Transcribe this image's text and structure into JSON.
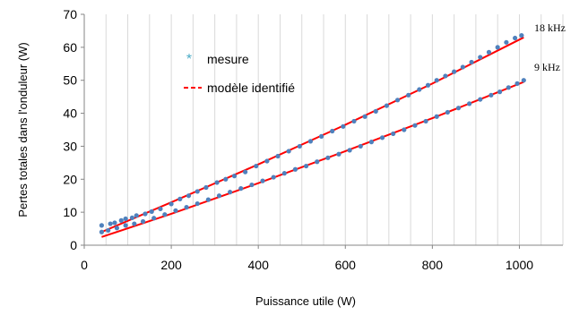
{
  "chart_data": {
    "type": "scatter",
    "xlabel": "Puissance utile (W)",
    "ylabel": "Pertes totales dans l'onduleur (W)",
    "xlim": [
      0,
      1100
    ],
    "ylim": [
      0,
      70
    ],
    "x_ticks": [
      "0",
      "200",
      "400",
      "600",
      "800",
      "1000"
    ],
    "y_ticks": [
      "0",
      "10",
      "20",
      "30",
      "40",
      "50",
      "60",
      "70"
    ],
    "grid": "vertical",
    "legend_position": "top-left",
    "legend": {
      "measure": "mesure",
      "model": "modèle identifié"
    },
    "annotations": [
      "18 kHz",
      "9 kHz"
    ],
    "colors": {
      "measure": "#4f81bd",
      "model": "#ff0000",
      "legend_marker": "#4bacc6",
      "grid": "#d9d9d9",
      "axis": "#868686"
    },
    "series": [
      {
        "name": "mesure",
        "kind": "scatter",
        "label": "18 kHz",
        "points": [
          [
            40,
            6.0
          ],
          [
            60,
            6.5
          ],
          [
            70,
            6.8
          ],
          [
            85,
            7.5
          ],
          [
            95,
            8.0
          ],
          [
            110,
            8.3
          ],
          [
            120,
            9.0
          ],
          [
            140,
            9.5
          ],
          [
            155,
            10.2
          ],
          [
            175,
            11.0
          ],
          [
            200,
            12.5
          ],
          [
            220,
            14.0
          ],
          [
            240,
            15.0
          ],
          [
            260,
            16.3
          ],
          [
            280,
            17.5
          ],
          [
            305,
            19.0
          ],
          [
            325,
            20.0
          ],
          [
            345,
            21.0
          ],
          [
            370,
            22.2
          ],
          [
            395,
            24.0
          ],
          [
            420,
            25.5
          ],
          [
            445,
            27.0
          ],
          [
            470,
            28.5
          ],
          [
            495,
            30.0
          ],
          [
            520,
            31.5
          ],
          [
            545,
            33.0
          ],
          [
            570,
            34.6
          ],
          [
            595,
            36.0
          ],
          [
            620,
            37.6
          ],
          [
            645,
            39.0
          ],
          [
            670,
            40.6
          ],
          [
            695,
            42.3
          ],
          [
            720,
            44.0
          ],
          [
            745,
            45.5
          ],
          [
            770,
            47.2
          ],
          [
            790,
            48.5
          ],
          [
            810,
            50.0
          ],
          [
            830,
            51.3
          ],
          [
            850,
            52.6
          ],
          [
            870,
            54.0
          ],
          [
            890,
            55.5
          ],
          [
            910,
            57.0
          ],
          [
            930,
            58.5
          ],
          [
            950,
            60.0
          ],
          [
            970,
            61.5
          ],
          [
            990,
            62.8
          ],
          [
            1005,
            63.6
          ]
        ]
      },
      {
        "name": "mesure",
        "kind": "scatter",
        "label": "9 kHz",
        "points": [
          [
            40,
            4.0
          ],
          [
            55,
            4.5
          ],
          [
            75,
            5.2
          ],
          [
            95,
            6.0
          ],
          [
            115,
            6.5
          ],
          [
            135,
            7.2
          ],
          [
            160,
            8.2
          ],
          [
            185,
            9.3
          ],
          [
            210,
            10.5
          ],
          [
            235,
            11.5
          ],
          [
            260,
            12.6
          ],
          [
            285,
            13.8
          ],
          [
            310,
            15.0
          ],
          [
            335,
            16.1
          ],
          [
            360,
            17.2
          ],
          [
            385,
            18.3
          ],
          [
            410,
            19.5
          ],
          [
            435,
            20.6
          ],
          [
            460,
            21.8
          ],
          [
            485,
            23.0
          ],
          [
            510,
            24.0
          ],
          [
            535,
            25.3
          ],
          [
            560,
            26.5
          ],
          [
            585,
            27.6
          ],
          [
            610,
            28.8
          ],
          [
            635,
            30.0
          ],
          [
            660,
            31.3
          ],
          [
            685,
            32.6
          ],
          [
            710,
            33.8
          ],
          [
            735,
            35.0
          ],
          [
            760,
            36.3
          ],
          [
            785,
            37.6
          ],
          [
            810,
            39.0
          ],
          [
            835,
            40.3
          ],
          [
            860,
            41.6
          ],
          [
            885,
            42.9
          ],
          [
            910,
            44.2
          ],
          [
            935,
            45.5
          ],
          [
            955,
            46.5
          ],
          [
            975,
            47.8
          ],
          [
            995,
            49.0
          ],
          [
            1010,
            50.0
          ]
        ]
      },
      {
        "name": "modèle identifié",
        "kind": "line",
        "label": "18 kHz",
        "points": [
          [
            40,
            4.0
          ],
          [
            200,
            13.0
          ],
          [
            400,
            24.5
          ],
          [
            600,
            36.5
          ],
          [
            800,
            49.0
          ],
          [
            1010,
            63.0
          ]
        ]
      },
      {
        "name": "modèle identifié",
        "kind": "line",
        "label": "9 kHz",
        "points": [
          [
            40,
            2.5
          ],
          [
            200,
            9.5
          ],
          [
            400,
            18.8
          ],
          [
            600,
            28.5
          ],
          [
            800,
            38.5
          ],
          [
            1010,
            49.5
          ]
        ]
      }
    ]
  }
}
